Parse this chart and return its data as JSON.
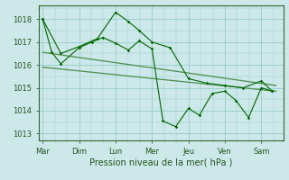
{
  "bg_color": "#cce8e8",
  "grid_color": "#99cccc",
  "line_color_main": "#006600",
  "line_color_trend": "#4d8c4d",
  "xlabel": "Pression niveau de la mer( hPa )",
  "day_labels": [
    "Mar",
    "Dim",
    "Lun",
    "Mer",
    "Jeu",
    "Ven",
    "Sam"
  ],
  "yticks": [
    1013,
    1014,
    1015,
    1016,
    1017,
    1018
  ],
  "ylim": [
    1012.7,
    1018.6
  ],
  "xlim": [
    -0.1,
    6.6
  ],
  "series1_x": [
    0,
    0.25,
    0.5,
    1.0,
    1.35,
    1.65,
    2.0,
    2.35,
    2.65,
    3.0,
    3.3,
    3.65,
    4.0,
    4.3,
    4.65,
    5.0,
    5.3,
    5.65,
    6.0,
    6.3
  ],
  "series1_y": [
    1018.0,
    1016.55,
    1016.05,
    1016.75,
    1017.0,
    1017.2,
    1016.95,
    1016.65,
    1017.05,
    1016.7,
    1013.55,
    1013.3,
    1014.1,
    1013.8,
    1014.75,
    1014.85,
    1014.45,
    1013.7,
    1015.0,
    1014.85
  ],
  "series2_x": [
    0,
    0.5,
    1.0,
    1.5,
    2.0,
    2.35,
    2.65,
    3.0,
    3.5,
    4.0,
    4.5,
    5.0,
    5.5,
    6.0,
    6.3
  ],
  "series2_y": [
    1018.0,
    1016.5,
    1016.8,
    1017.15,
    1018.3,
    1017.9,
    1017.5,
    1017.0,
    1016.75,
    1015.4,
    1015.2,
    1015.1,
    1015.0,
    1015.3,
    1014.85
  ],
  "trend1_x": [
    0,
    6.4
  ],
  "trend1_y": [
    1016.55,
    1015.1
  ],
  "trend2_x": [
    0,
    6.4
  ],
  "trend2_y": [
    1015.9,
    1014.85
  ]
}
